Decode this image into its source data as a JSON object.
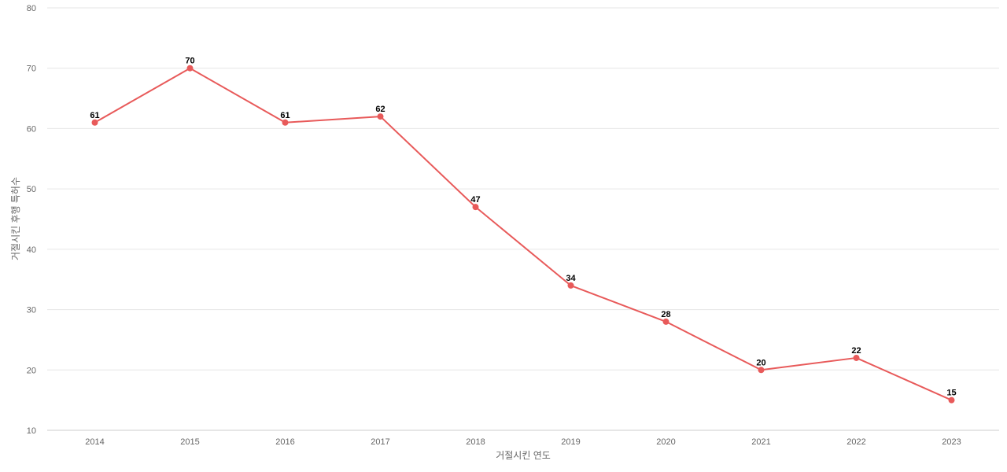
{
  "chart_data": {
    "type": "line",
    "title": "",
    "xlabel": "거절시킨 연도",
    "ylabel": "거절시킨 후행 특허수",
    "x": [
      "2014",
      "2015",
      "2016",
      "2017",
      "2018",
      "2019",
      "2020",
      "2021",
      "2022",
      "2023"
    ],
    "series": [
      {
        "values": [
          61,
          70,
          61,
          62,
          47,
          34,
          28,
          20,
          22,
          15
        ],
        "color": "#e85a5a"
      }
    ],
    "ylim": [
      10,
      80
    ],
    "yticks": [
      10,
      20,
      30,
      40,
      50,
      60,
      70,
      80
    ],
    "grid": true,
    "data_labels": true,
    "legend": "none"
  }
}
